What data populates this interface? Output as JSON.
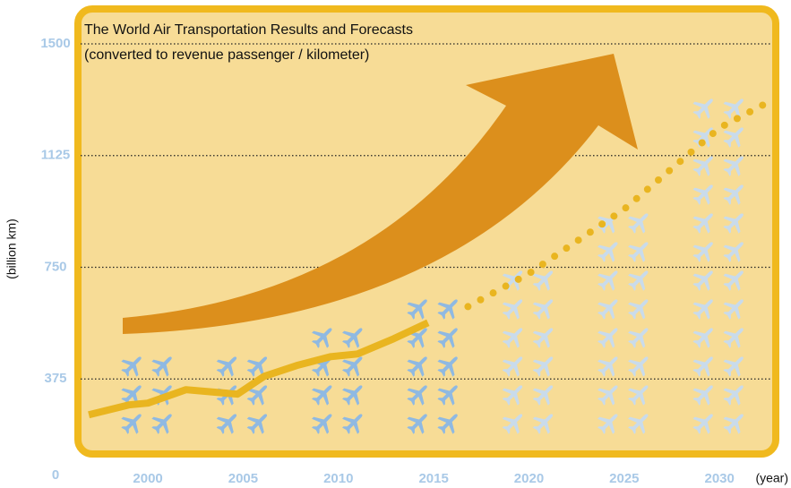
{
  "chart_data": {
    "type": "line",
    "title": "The World Air Transportation Results and Forecasts",
    "subtitle": "(converted to revenue passenger / kilometer)",
    "y_label": "(billion km)",
    "x_label": "(year)",
    "xlim": [
      1996,
      2033
    ],
    "xticks": [
      2000,
      2005,
      2010,
      2015,
      2020,
      2025,
      2030
    ],
    "ylim": [
      0,
      1500
    ],
    "yticks": [
      0,
      375,
      750,
      1125,
      1500
    ],
    "grid": true,
    "series": [
      {
        "color": "#e9b520",
        "style": "solid",
        "x": [
          1996.9,
          1999,
          2000,
          2002,
          2004.7,
          2006.1,
          2007.8,
          2009.6,
          2011,
          2012.9,
          2014.7
        ],
        "values": [
          255,
          288,
          294,
          339,
          324,
          384,
          420,
          450,
          459,
          510,
          564
        ]
      },
      {
        "color": "#e9b520",
        "style": "dotted",
        "x": [
          2016.8,
          2020,
          2025,
          2030,
          2032.4
        ],
        "values": [
          618,
          729,
          945,
          1218,
          1299
        ]
      }
    ],
    "pictogram": {
      "x": [
        2000,
        2005,
        2010,
        2015,
        2020,
        2025,
        2030
      ],
      "rows": [
        3,
        3,
        4,
        5,
        6,
        8,
        12
      ],
      "colors": [
        "#8fb9e2",
        "#8fb9e2",
        "#8fb9e2",
        "#8fb9e2",
        "#c9dbeb",
        "#c9dbeb",
        "#c9dbeb"
      ]
    }
  }
}
